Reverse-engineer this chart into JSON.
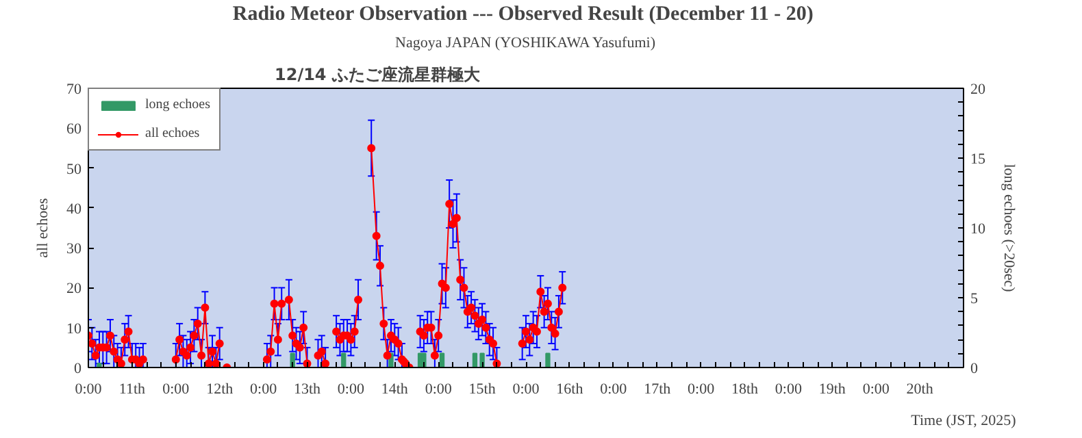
{
  "chart_data": {
    "type": "line",
    "title": "Radio Meteor Observation  --- Observed Result (December 11 - 20)",
    "subtitle": "Nagoya JAPAN (YOSHIKAWA Yasufumi)",
    "annotations": [
      "12/14 ふたご座流星群極大"
    ],
    "xlabel": "Time (JST, 2025)",
    "ylabel": "all echoes",
    "y2label": "long echoes (>20sec)",
    "xlim": [
      "2025-12-11T00:00",
      "2025-12-21T00:00"
    ],
    "ylim": [
      0,
      70
    ],
    "y2lim": [
      0,
      20
    ],
    "xticks": [
      {
        "value": "2025-12-11T00:00",
        "label": "0:00"
      },
      {
        "value": "2025-12-11T04:00",
        "label": null
      },
      {
        "value": "2025-12-11T08:00",
        "label": null
      },
      {
        "value": "2025-12-11T12:00",
        "label": "11th"
      },
      {
        "value": "2025-12-11T16:00",
        "label": null
      },
      {
        "value": "2025-12-11T20:00",
        "label": null
      },
      {
        "value": "2025-12-12T00:00",
        "label": "0:00"
      },
      {
        "value": "2025-12-12T04:00",
        "label": null
      },
      {
        "value": "2025-12-12T08:00",
        "label": null
      },
      {
        "value": "2025-12-12T12:00",
        "label": "12th"
      },
      {
        "value": "2025-12-12T16:00",
        "label": null
      },
      {
        "value": "2025-12-12T20:00",
        "label": null
      },
      {
        "value": "2025-12-13T00:00",
        "label": "0:00"
      },
      {
        "value": "2025-12-13T04:00",
        "label": null
      },
      {
        "value": "2025-12-13T08:00",
        "label": null
      },
      {
        "value": "2025-12-13T12:00",
        "label": "13th"
      },
      {
        "value": "2025-12-13T16:00",
        "label": null
      },
      {
        "value": "2025-12-13T20:00",
        "label": null
      },
      {
        "value": "2025-12-14T00:00",
        "label": "0:00"
      },
      {
        "value": "2025-12-14T04:00",
        "label": null
      },
      {
        "value": "2025-12-14T08:00",
        "label": null
      },
      {
        "value": "2025-12-14T12:00",
        "label": "14th"
      },
      {
        "value": "2025-12-14T16:00",
        "label": null
      },
      {
        "value": "2025-12-14T20:00",
        "label": null
      },
      {
        "value": "2025-12-15T00:00",
        "label": "0:00"
      },
      {
        "value": "2025-12-15T04:00",
        "label": null
      },
      {
        "value": "2025-12-15T08:00",
        "label": null
      },
      {
        "value": "2025-12-15T12:00",
        "label": "15th"
      },
      {
        "value": "2025-12-15T16:00",
        "label": null
      },
      {
        "value": "2025-12-15T20:00",
        "label": null
      },
      {
        "value": "2025-12-16T00:00",
        "label": "0:00"
      },
      {
        "value": "2025-12-16T04:00",
        "label": null
      },
      {
        "value": "2025-12-16T08:00",
        "label": null
      },
      {
        "value": "2025-12-16T12:00",
        "label": "16th"
      },
      {
        "value": "2025-12-16T16:00",
        "label": null
      },
      {
        "value": "2025-12-16T20:00",
        "label": null
      },
      {
        "value": "2025-12-17T00:00",
        "label": "0:00"
      },
      {
        "value": "2025-12-17T04:00",
        "label": null
      },
      {
        "value": "2025-12-17T08:00",
        "label": null
      },
      {
        "value": "2025-12-17T12:00",
        "label": "17th"
      },
      {
        "value": "2025-12-17T16:00",
        "label": null
      },
      {
        "value": "2025-12-17T20:00",
        "label": null
      },
      {
        "value": "2025-12-18T00:00",
        "label": "0:00"
      },
      {
        "value": "2025-12-18T04:00",
        "label": null
      },
      {
        "value": "2025-12-18T08:00",
        "label": null
      },
      {
        "value": "2025-12-18T12:00",
        "label": "18th"
      },
      {
        "value": "2025-12-18T16:00",
        "label": null
      },
      {
        "value": "2025-12-18T20:00",
        "label": null
      },
      {
        "value": "2025-12-19T00:00",
        "label": "0:00"
      },
      {
        "value": "2025-12-19T04:00",
        "label": null
      },
      {
        "value": "2025-12-19T08:00",
        "label": null
      },
      {
        "value": "2025-12-19T12:00",
        "label": "19th"
      },
      {
        "value": "2025-12-19T16:00",
        "label": null
      },
      {
        "value": "2025-12-19T20:00",
        "label": null
      },
      {
        "value": "2025-12-20T00:00",
        "label": "0:00"
      },
      {
        "value": "2025-12-20T04:00",
        "label": null
      },
      {
        "value": "2025-12-20T08:00",
        "label": null
      },
      {
        "value": "2025-12-20T12:00",
        "label": "20th"
      },
      {
        "value": "2025-12-20T16:00",
        "label": null
      },
      {
        "value": "2025-12-20T20:00",
        "label": null
      },
      {
        "value": "2025-12-21T00:00",
        "label": null
      }
    ],
    "yticks": [
      0,
      10,
      20,
      30,
      40,
      50,
      60,
      70
    ],
    "y2ticks": [
      0,
      {
        "value": 1,
        "label": null
      },
      {
        "value": 2,
        "label": null
      },
      {
        "value": 3,
        "label": null
      },
      {
        "value": 4,
        "label": null
      },
      5,
      {
        "value": 6,
        "label": null
      },
      {
        "value": 7,
        "label": null
      },
      {
        "value": 8,
        "label": null
      },
      {
        "value": 9,
        "label": null
      },
      10,
      {
        "value": 11,
        "label": null
      },
      {
        "value": 12,
        "label": null
      },
      {
        "value": 13,
        "label": null
      },
      {
        "value": 14,
        "label": null
      },
      15,
      {
        "value": 16,
        "label": null
      },
      {
        "value": 17,
        "label": null
      },
      {
        "value": 18,
        "label": null
      },
      {
        "value": 19,
        "label": null
      },
      20
    ],
    "legend": "top left",
    "grid": false,
    "series": [
      {
        "name": "long echoes",
        "type": "bar",
        "axis": "y2",
        "color": "#339966",
        "x": [
          "2025-12-11T03:00",
          "2025-12-13T08:00",
          "2025-12-13T22:00",
          "2025-12-14T11:00",
          "2025-12-14T19:00",
          "2025-12-14T20:00",
          "2025-12-15T01:00",
          "2025-12-15T10:00",
          "2025-12-15T12:00",
          "2025-12-16T06:00"
        ],
        "values": [
          0.3,
          1,
          1,
          1,
          1,
          1,
          1,
          1,
          1,
          1
        ]
      },
      {
        "name": "all echoes",
        "marker": "circle",
        "color": "#ff0000",
        "x": [
          "2025-12-11T00:00",
          "2025-12-11T01:00",
          "2025-12-11T02:00",
          "2025-12-11T03:00",
          "2025-12-11T04:00",
          "2025-12-11T05:00",
          "2025-12-11T06:00",
          "2025-12-11T07:00",
          "2025-12-11T08:00",
          "2025-12-11T09:00",
          "2025-12-11T10:00",
          "2025-12-11T11:00",
          "2025-12-11T12:00",
          "2025-12-11T13:00",
          "2025-12-11T14:00",
          "2025-12-11T15:00",
          "2025-12-11T16:00",
          "2025-12-12T00:00",
          "2025-12-12T01:00",
          "2025-12-12T02:00",
          "2025-12-12T03:00",
          "2025-12-12T04:00",
          "2025-12-12T05:00",
          "2025-12-12T06:00",
          "2025-12-12T07:00",
          "2025-12-12T08:00",
          "2025-12-12T09:00",
          "2025-12-12T10:00",
          "2025-12-12T11:00",
          "2025-12-12T12:00",
          "2025-12-12T13:00",
          "2025-12-12T14:00",
          "2025-12-12T15:00",
          "2025-12-13T01:00",
          "2025-12-13T02:00",
          "2025-12-13T03:00",
          "2025-12-13T04:00",
          "2025-12-13T05:00",
          "2025-12-13T07:00",
          "2025-12-13T08:00",
          "2025-12-13T09:00",
          "2025-12-13T10:00",
          "2025-12-13T11:00",
          "2025-12-13T12:00",
          "2025-12-13T13:00",
          "2025-12-13T15:00",
          "2025-12-13T16:00",
          "2025-12-13T17:00",
          "2025-12-13T18:00",
          "2025-12-13T20:00",
          "2025-12-13T21:00",
          "2025-12-13T22:00",
          "2025-12-13T23:00",
          "2025-12-14T00:00",
          "2025-12-14T01:00",
          "2025-12-14T02:00",
          "2025-12-14T03:30",
          "2025-12-14T05:36",
          "2025-12-14T07:00",
          "2025-12-14T08:00",
          "2025-12-14T09:00",
          "2025-12-14T10:00",
          "2025-12-14T11:00",
          "2025-12-14T12:00",
          "2025-12-14T13:00",
          "2025-12-14T14:00",
          "2025-12-14T14:30",
          "2025-12-14T15:00",
          "2025-12-14T16:00",
          "2025-12-14T17:00",
          "2025-12-14T19:00",
          "2025-12-14T20:00",
          "2025-12-14T21:00",
          "2025-12-14T22:00",
          "2025-12-14T23:00",
          "2025-12-15T00:00",
          "2025-12-15T01:00",
          "2025-12-15T02:00",
          "2025-12-15T03:00",
          "2025-12-15T04:00",
          "2025-12-15T05:00",
          "2025-12-15T06:00",
          "2025-12-15T07:00",
          "2025-12-15T08:00",
          "2025-12-15T09:00",
          "2025-12-15T10:00",
          "2025-12-15T11:00",
          "2025-12-15T12:00",
          "2025-12-15T13:00",
          "2025-12-15T14:00",
          "2025-12-15T15:00",
          "2025-12-15T16:00",
          "2025-12-15T17:00",
          "2025-12-15T23:00",
          "2025-12-16T00:00",
          "2025-12-16T01:00",
          "2025-12-16T02:00",
          "2025-12-16T03:00",
          "2025-12-16T04:00",
          "2025-12-16T05:00",
          "2025-12-16T06:00",
          "2025-12-16T07:00",
          "2025-12-16T08:00",
          "2025-12-16T09:00",
          "2025-12-16T10:00"
        ],
        "values": [
          8,
          6,
          3,
          5,
          5,
          5,
          8,
          4,
          2,
          1,
          7,
          9,
          2,
          2,
          1,
          2,
          null,
          2,
          7,
          4,
          3,
          5,
          8,
          11,
          3,
          15,
          1,
          4,
          1,
          6,
          null,
          0,
          null,
          2,
          4,
          16,
          7,
          16,
          17,
          8,
          6,
          5,
          10,
          1,
          null,
          3,
          4,
          1,
          null,
          9,
          7,
          8,
          8,
          7,
          9,
          17,
          null,
          55,
          33,
          25.5,
          11,
          3,
          8,
          7,
          6,
          2,
          1.5,
          1,
          0,
          null,
          9,
          8,
          10,
          10,
          3,
          8,
          21,
          20,
          41,
          36,
          37.5,
          22,
          20,
          14,
          15,
          13,
          11,
          12,
          10,
          7,
          6,
          1,
          null,
          6,
          9,
          7,
          10,
          9,
          19,
          14,
          16,
          10,
          8.5,
          14,
          20
        ],
        "errors": [
          4,
          4,
          [
            0,
            7
          ],
          4,
          4,
          4,
          4,
          4,
          [
            0,
            6
          ],
          [
            0,
            5
          ],
          4,
          4,
          [
            0,
            6
          ],
          [
            0,
            6
          ],
          [
            0,
            5
          ],
          [
            0,
            6
          ],
          null,
          [
            0,
            6
          ],
          4,
          4,
          [
            0,
            7
          ],
          4,
          4,
          4,
          [
            0,
            7
          ],
          4,
          [
            0,
            5
          ],
          4,
          [
            0,
            5
          ],
          4,
          null,
          null,
          null,
          [
            0,
            6
          ],
          4,
          4,
          4,
          4,
          5,
          4,
          4,
          4,
          4,
          [
            0,
            5
          ],
          null,
          [
            0,
            7
          ],
          4,
          [
            0,
            5
          ],
          null,
          4,
          4,
          4,
          4,
          4,
          4,
          5,
          null,
          7,
          6,
          5,
          4,
          [
            0,
            7
          ],
          4,
          4,
          4,
          [
            0,
            6
          ],
          null,
          null,
          null,
          null,
          4,
          4,
          4,
          4,
          [
            0,
            7
          ],
          4,
          5,
          5,
          6,
          6,
          6,
          5,
          5,
          4,
          4,
          4,
          4,
          4,
          4,
          4,
          4,
          [
            0,
            5
          ],
          null,
          4,
          4,
          4,
          4,
          4,
          4,
          4,
          4,
          4,
          4,
          4,
          4
        ]
      }
    ]
  }
}
